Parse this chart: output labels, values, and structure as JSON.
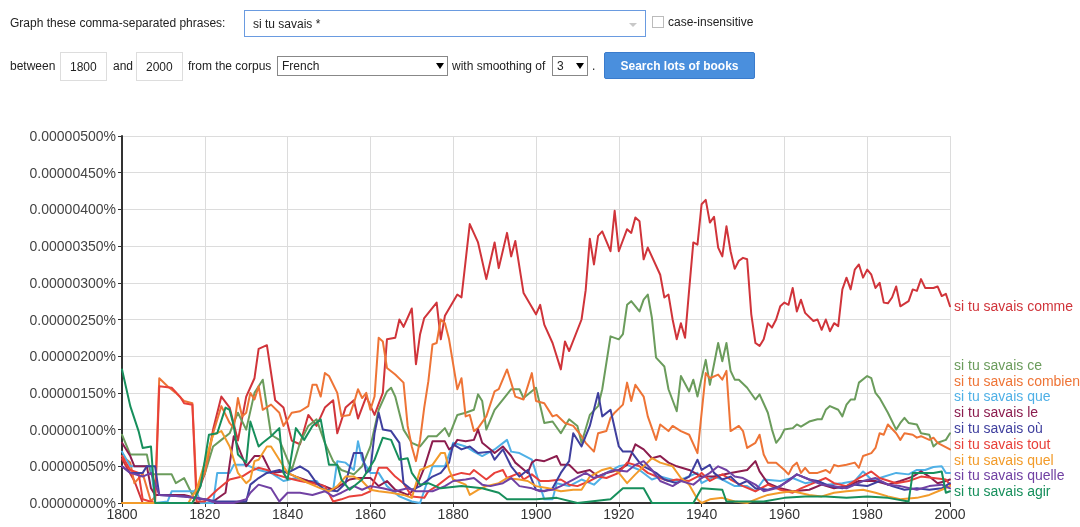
{
  "chart_data": {
    "type": "line",
    "xlim": [
      1800,
      2000
    ],
    "ylim": [
      0,
      5e-06
    ],
    "xticks": [
      1800,
      1820,
      1840,
      1860,
      1880,
      1900,
      1920,
      1940,
      1960,
      1980,
      2000
    ],
    "yticks": [
      {
        "value": 0,
        "label": "0.00000000%"
      },
      {
        "value": 5e-07,
        "label": "0.00000050%"
      },
      {
        "value": 1e-06,
        "label": "0.00000100%"
      },
      {
        "value": 1.5e-06,
        "label": "0.00000150%"
      },
      {
        "value": 2e-06,
        "label": "0.00000200%"
      },
      {
        "value": 2.5e-06,
        "label": "0.00000250%"
      },
      {
        "value": 3e-06,
        "label": "0.00000300%"
      },
      {
        "value": 3.5e-06,
        "label": "0.00000350%"
      },
      {
        "value": 4e-06,
        "label": "0.00000400%"
      },
      {
        "value": 4.5e-06,
        "label": "0.00000450%"
      },
      {
        "value": 5e-06,
        "label": "0.00000500%"
      }
    ],
    "grid": true,
    "legend": "right",
    "marker": "none",
    "line_style": "solid",
    "annotations": [
      "Graph these comma-separated phrases:",
      "si tu savais *",
      "case-insensitive",
      "between",
      "1800",
      "and",
      "2000",
      "from the corpus",
      "French",
      "with smoothing of",
      "3",
      ".",
      "Search lots of books"
    ],
    "series": [
      {
        "name": "si tu savais comme",
        "color": "#d0343a",
        "x": [
          1800,
          1803,
          1805,
          1817,
          1818,
          1820,
          1822,
          1824,
          1826,
          1828,
          1830,
          1832,
          1833,
          1835,
          1837,
          1839,
          1841,
          1843,
          1845,
          1847,
          1849,
          1851,
          1852,
          1854,
          1856,
          1857,
          1859,
          1861,
          1863,
          1864,
          1866,
          1867,
          1868,
          1870,
          1871,
          1872,
          1873,
          1876,
          1877,
          1878,
          1881,
          1882,
          1884,
          1886,
          1888,
          1890,
          1891,
          1893,
          1894,
          1895,
          1897,
          1900,
          1901,
          1902,
          1904,
          1906,
          1907,
          1908,
          1911,
          1912,
          1913,
          1914,
          1915,
          1916,
          1918,
          1919,
          1920,
          1922,
          1923,
          1924,
          1925,
          1926,
          1927,
          1930,
          1931,
          1932,
          1933,
          1934,
          1935,
          1936,
          1937,
          1938,
          1939,
          1940,
          1941,
          1942,
          1943,
          1944,
          1945,
          1946,
          1947,
          1948,
          1949,
          1950,
          1951,
          1952,
          1953,
          1954,
          1955,
          1956,
          1957,
          1958,
          1959,
          1960,
          1961,
          1962,
          1963,
          1964,
          1965,
          1967,
          1968,
          1969,
          1970,
          1971,
          1972,
          1973,
          1974,
          1975,
          1976,
          1977,
          1978,
          1979,
          1980,
          1981,
          1982,
          1983,
          1984,
          1985,
          1986,
          1987,
          1988,
          1990,
          1991,
          1992,
          1993,
          1994,
          1996,
          1997,
          1998,
          1999,
          2000
        ],
        "values": [
          6e-07,
          3e-07,
          0,
          0,
          1e-07,
          4e-07,
          1e-06,
          1.45e-06,
          1.3e-06,
          8.5e-07,
          1.45e-06,
          1.7e-06,
          2.1e-06,
          2.15e-06,
          1.4e-06,
          1.3e-06,
          8.5e-07,
          8e-07,
          1.2e-06,
          1.05e-06,
          1.3e-06,
          1.4e-06,
          9.5e-07,
          1.3e-06,
          1.4e-06,
          1.15e-06,
          1.45e-06,
          1.2e-06,
          1.5e-06,
          2.23e-06,
          2.25e-06,
          2.5e-06,
          2.4e-06,
          2.65e-06,
          1.89e-06,
          2.3e-06,
          2.52e-06,
          2.73e-06,
          2.23e-06,
          2.55e-06,
          2.84e-06,
          2.8e-06,
          3.8e-06,
          3.55e-06,
          3.05e-06,
          3.55e-06,
          3.2e-06,
          3.68e-06,
          3.36e-06,
          3.57e-06,
          2.86e-06,
          2.57e-06,
          2.7e-06,
          2.43e-06,
          2.18e-06,
          1.82e-06,
          2.2e-06,
          2.07e-06,
          2.5e-06,
          2.9e-06,
          3.6e-06,
          3.25e-06,
          3.64e-06,
          3.7e-06,
          3.43e-06,
          3.98e-06,
          3.43e-06,
          3.73e-06,
          3.68e-06,
          3.89e-06,
          3.84e-06,
          3.32e-06,
          3.48e-06,
          3.11e-06,
          2.8e-06,
          2.84e-06,
          2.5e-06,
          2.23e-06,
          2.45e-06,
          2.25e-06,
          2.91e-06,
          3.55e-06,
          3.52e-06,
          4.07e-06,
          4.13e-06,
          3.82e-06,
          3.9e-06,
          3.48e-06,
          3.36e-06,
          3.77e-06,
          3.43e-06,
          3.19e-06,
          3.3e-06,
          3.34e-06,
          3.32e-06,
          2.57e-06,
          2.18e-06,
          2.14e-06,
          2.23e-06,
          2.45e-06,
          2.39e-06,
          2.5e-06,
          2.68e-06,
          2.73e-06,
          2.7e-06,
          2.93e-06,
          2.61e-06,
          2.77e-06,
          2.59e-06,
          2.48e-06,
          2.5e-06,
          2.36e-06,
          2.5e-06,
          2.34e-06,
          2.45e-06,
          2.41e-06,
          2.91e-06,
          3.07e-06,
          2.91e-06,
          3.18e-06,
          3.25e-06,
          3.07e-06,
          3.18e-06,
          3.11e-06,
          2.93e-06,
          3e-06,
          2.73e-06,
          2.72e-06,
          2.8e-06,
          2.95e-06,
          2.68e-06,
          2.75e-06,
          2.91e-06,
          2.89e-06,
          3.05e-06,
          2.93e-06,
          2.93e-06,
          2.95e-06,
          2.82e-06,
          2.85e-06,
          2.68e-06
        ]
      },
      {
        "name": "si tu savais ce",
        "color": "#6b9c5c",
        "x": [
          1800,
          1802,
          1806,
          1807,
          1812,
          1813,
          1815,
          1817,
          1820,
          1822,
          1824,
          1826,
          1828,
          1830,
          1832,
          1834,
          1836,
          1838,
          1841,
          1843,
          1845,
          1847,
          1849,
          1851,
          1853,
          1856,
          1858,
          1860,
          1862,
          1864,
          1865,
          1866,
          1868,
          1870,
          1872,
          1874,
          1876,
          1878,
          1879,
          1881,
          1883,
          1885,
          1886,
          1887,
          1888,
          1890,
          1892,
          1894,
          1896,
          1897,
          1900,
          1902,
          1904,
          1906,
          1908,
          1910,
          1911,
          1913,
          1915,
          1916,
          1918,
          1920,
          1921,
          1922,
          1923,
          1925,
          1926,
          1927,
          1928,
          1929,
          1931,
          1932,
          1934,
          1935,
          1937,
          1938,
          1939,
          1941,
          1942,
          1943,
          1944,
          1945,
          1946,
          1947,
          1948,
          1949,
          1951,
          1953,
          1954,
          1956,
          1957,
          1958,
          1959,
          1960,
          1962,
          1963,
          1964,
          1966,
          1968,
          1969,
          1970,
          1971,
          1973,
          1974,
          1975,
          1976,
          1977,
          1978,
          1980,
          1981,
          1982,
          1983,
          1985,
          1987,
          1988,
          1989,
          1990,
          1992,
          1993,
          1995,
          1996,
          1997,
          1999,
          2000
        ],
        "values": [
          9.3e-07,
          6.6e-07,
          6.6e-07,
          3.9e-07,
          3.9e-07,
          2.7e-07,
          3.4e-07,
          1.1e-07,
          4e-07,
          7.7e-07,
          8.6e-07,
          9.5e-07,
          1.23e-06,
          1e-06,
          1.5e-06,
          1.68e-06,
          9.3e-07,
          8.6e-07,
          4.5e-07,
          8.2e-07,
          1.05e-06,
          1.14e-06,
          8.2e-07,
          5.7e-07,
          4.5e-07,
          3.9e-07,
          5e-07,
          7.7e-07,
          1.27e-06,
          1.52e-06,
          1.57e-06,
          1.45e-06,
          1e-06,
          8.2e-07,
          7.7e-07,
          9.1e-07,
          9.1e-07,
          1.02e-06,
          9.1e-07,
          1.2e-06,
          1.23e-06,
          1.27e-06,
          1.48e-06,
          1.39e-06,
          1e-06,
          1.27e-06,
          1.41e-06,
          1.55e-06,
          1.55e-06,
          1.43e-06,
          1.57e-06,
          1.09e-06,
          1.11e-06,
          9.5e-07,
          1.14e-06,
          1.05e-06,
          8.2e-07,
          1.2e-06,
          1.32e-06,
          1.55e-06,
          2.27e-06,
          2.23e-06,
          2.3e-06,
          2.7e-06,
          2.75e-06,
          2.61e-06,
          2.77e-06,
          2.84e-06,
          2.52e-06,
          1.98e-06,
          1.86e-06,
          1.55e-06,
          1.25e-06,
          1.73e-06,
          1.52e-06,
          1.68e-06,
          1.45e-06,
          1.95e-06,
          1.61e-06,
          1.89e-06,
          2.18e-06,
          1.93e-06,
          2.18e-06,
          1.8e-06,
          1.68e-06,
          1.68e-06,
          1.57e-06,
          1.41e-06,
          1.48e-06,
          1.23e-06,
          1e-06,
          8.2e-07,
          8.9e-07,
          1e-06,
          1.02e-06,
          1.07e-06,
          1.04e-06,
          1.11e-06,
          1.14e-06,
          1.14e-06,
          1.27e-06,
          1.32e-06,
          1.27e-06,
          1.18e-06,
          1.34e-06,
          1.41e-06,
          1.41e-06,
          1.64e-06,
          1.73e-06,
          1.7e-06,
          1.5e-06,
          1.43e-06,
          1.23e-06,
          1e-06,
          1.09e-06,
          1.16e-06,
          1.09e-06,
          1.07e-06,
          9.5e-07,
          9.3e-07,
          7.7e-07,
          8.2e-07,
          8.6e-07,
          9.5e-07
        ]
      },
      {
        "name": "si tu savais combien",
        "color": "#ee7436",
        "x": [
          1800,
          1802,
          1803,
          1805,
          1807,
          1808,
          1809,
          1811,
          1813,
          1815,
          1817,
          1818,
          1820,
          1822,
          1824,
          1826,
          1827,
          1828,
          1829,
          1830,
          1831,
          1832,
          1833,
          1834,
          1836,
          1838,
          1839,
          1841,
          1843,
          1845,
          1846,
          1847,
          1848,
          1849,
          1850,
          1852,
          1853,
          1855,
          1856,
          1857,
          1858,
          1859,
          1860,
          1861,
          1862,
          1863,
          1864,
          1866,
          1868,
          1869,
          1870,
          1871,
          1872,
          1873,
          1874,
          1875,
          1876,
          1877,
          1878,
          1879,
          1881,
          1882,
          1883,
          1884,
          1885,
          1886,
          1888,
          1890,
          1891,
          1893,
          1894,
          1895,
          1897,
          1899,
          1900,
          1902,
          1904,
          1905,
          1907,
          1909,
          1911,
          1912,
          1914,
          1915,
          1917,
          1918,
          1919,
          1921,
          1922,
          1923,
          1924,
          1926,
          1927,
          1929,
          1930,
          1932,
          1933,
          1935,
          1937,
          1939,
          1941,
          1942,
          1944,
          1945,
          1946,
          1947,
          1949,
          1950,
          1951,
          1953,
          1954,
          1955,
          1956,
          1958,
          1960,
          1961,
          1962,
          1963,
          1964,
          1965,
          1966,
          1968,
          1970,
          1971,
          1972,
          1973,
          1975,
          1977,
          1978,
          1979,
          1981,
          1982,
          1983,
          1984,
          1985,
          1987,
          1988,
          1989,
          1991,
          1992,
          1993,
          1995,
          1996,
          1997,
          2000
        ],
        "values": [
          6.4e-07,
          5.5e-07,
          2.7e-07,
          4e-07,
          2e-08,
          9e-08,
          1.7e-06,
          1.59e-06,
          1.5e-06,
          1.39e-06,
          1.36e-06,
          1.8e-07,
          4.1e-07,
          9.5e-07,
          1.32e-06,
          1.09e-06,
          1.02e-06,
          1.43e-06,
          1.18e-06,
          1.23e-06,
          1.5e-06,
          1.41e-06,
          1.59e-06,
          1.27e-06,
          1.34e-06,
          1.23e-06,
          1.05e-06,
          1.23e-06,
          1.25e-06,
          1.32e-06,
          1.61e-06,
          1.61e-06,
          1.45e-06,
          1.77e-06,
          1.73e-06,
          1.5e-06,
          1.18e-06,
          1.2e-06,
          1.36e-06,
          1.55e-06,
          1.43e-06,
          1.5e-06,
          1.27e-06,
          1.45e-06,
          2.25e-06,
          2.2e-06,
          1.84e-06,
          1.75e-06,
          1.64e-06,
          1.05e-06,
          7.7e-07,
          5.7e-07,
          8.6e-07,
          1.3e-06,
          1.66e-06,
          2.16e-06,
          2.18e-06,
          2.5e-06,
          2.45e-06,
          2.23e-06,
          1.55e-06,
          1.7e-06,
          1.18e-06,
          1.2e-06,
          9.8e-07,
          1.02e-06,
          1.18e-06,
          1.52e-06,
          1.55e-06,
          1.82e-06,
          1.64e-06,
          1.45e-06,
          1.41e-06,
          1.77e-06,
          1.39e-06,
          1.36e-06,
          1.18e-06,
          1.2e-06,
          1.09e-06,
          1.05e-06,
          9.1e-07,
          8.2e-07,
          7e-07,
          9.5e-07,
          9.8e-07,
          1.16e-06,
          1.23e-06,
          1.34e-06,
          1.64e-06,
          1.39e-06,
          1.61e-06,
          1.45e-06,
          1.18e-06,
          8.6e-07,
          1.07e-06,
          9.8e-07,
          1.05e-06,
          9.8e-07,
          9.3e-07,
          6.8e-07,
          1.77e-06,
          1.7e-06,
          1.75e-06,
          1.68e-06,
          1.8e-06,
          9.8e-07,
          1.05e-06,
          9.8e-07,
          7.5e-07,
          8.2e-07,
          9.3e-07,
          6.6e-07,
          5.5e-07,
          5.5e-07,
          4.5e-07,
          3.9e-07,
          5e-07,
          5.5e-07,
          4.1e-07,
          4.8e-07,
          4.1e-07,
          4.1e-07,
          4.5e-07,
          4.1e-07,
          5.2e-07,
          5e-07,
          5.2e-07,
          5.5e-07,
          4.8e-07,
          6.4e-07,
          6.8e-07,
          7.5e-07,
          9.5e-07,
          9.3e-07,
          1.07e-06,
          9.5e-07,
          8.6e-07,
          9.5e-07,
          9.3e-07,
          8.9e-07,
          9.1e-07,
          8.6e-07,
          8.9e-07,
          8.2e-07,
          7.3e-07
        ]
      },
      {
        "name": "si tu savais que",
        "color": "#4fb0e6",
        "x": [
          1800,
          1802,
          1807,
          1808,
          1811,
          1812,
          1818,
          1819,
          1822,
          1823,
          1826,
          1827,
          1830,
          1833,
          1836,
          1839,
          1842,
          1845,
          1847,
          1849,
          1851,
          1852,
          1854,
          1856,
          1857,
          1858,
          1860,
          1862,
          1864,
          1867,
          1870,
          1872,
          1875,
          1878,
          1880,
          1883,
          1885,
          1887,
          1890,
          1893,
          1894,
          1896,
          1899,
          1900,
          1902,
          1904,
          1905,
          1908,
          1911,
          1914,
          1917,
          1920,
          1922,
          1925,
          1928,
          1930,
          1934,
          1936,
          1939,
          1940,
          1943,
          1945,
          1948,
          1951,
          1953,
          1955,
          1959,
          1962,
          1965,
          1968,
          1970,
          1974,
          1977,
          1979,
          1981,
          1983,
          1987,
          1990,
          1992,
          1994,
          1996,
          1998,
          1999,
          2000
        ],
        "values": [
          7e-07,
          5e-07,
          5e-07,
          0,
          2e-08,
          1.6e-07,
          1.6e-07,
          0,
          0,
          4.1e-07,
          4.1e-07,
          5.2e-07,
          5.2e-07,
          4.5e-07,
          4.1e-07,
          3e-07,
          3.4e-07,
          3e-07,
          3e-07,
          1.6e-07,
          1.8e-07,
          5.7e-07,
          5.5e-07,
          4.5e-07,
          8.4e-07,
          5.9e-07,
          4.1e-07,
          4.1e-07,
          2.3e-07,
          9e-08,
          2e-08,
          0,
          5e-07,
          5e-07,
          8.2e-07,
          7.7e-07,
          7e-07,
          6.4e-07,
          7.3e-07,
          8.6e-07,
          7e-07,
          6.8e-07,
          5.9e-07,
          4.1e-07,
          5e-08,
          5e-08,
          2.7e-07,
          2.3e-07,
          3.2e-07,
          2.5e-07,
          4.1e-07,
          5e-07,
          5.2e-07,
          4.5e-07,
          3.2e-07,
          3.6e-07,
          3e-07,
          3.4e-07,
          4.1e-07,
          2.7e-07,
          3.6e-07,
          3.2e-07,
          2.3e-07,
          2.3e-07,
          1.6e-07,
          3.2e-07,
          3e-07,
          3.4e-07,
          2.7e-07,
          3e-07,
          2.5e-07,
          2.7e-07,
          3e-07,
          4.3e-07,
          3.2e-07,
          3.4e-07,
          4.1e-07,
          3.9e-07,
          4.5e-07,
          4.5e-07,
          4.9e-07,
          5e-07,
          4.1e-07,
          4.1e-07
        ]
      },
      {
        "name": "si tu savais le",
        "color": "#8c1d4e",
        "x": [
          1800,
          1802,
          1803,
          1806,
          1807,
          1808,
          1815,
          1818,
          1822,
          1825,
          1827,
          1830,
          1832,
          1834,
          1836,
          1839,
          1842,
          1845,
          1848,
          1851,
          1853,
          1855,
          1857,
          1860,
          1862,
          1864,
          1866,
          1869,
          1871,
          1873,
          1875,
          1878,
          1879,
          1880,
          1881,
          1883,
          1885,
          1886,
          1887,
          1889,
          1890,
          1892,
          1894,
          1895,
          1898,
          1899,
          1900,
          1902,
          1905,
          1906,
          1908,
          1910,
          1913,
          1915,
          1917,
          1920,
          1922,
          1924,
          1926,
          1928,
          1930,
          1932,
          1934,
          1937,
          1940,
          1943,
          1947,
          1951,
          1953,
          1954,
          1956,
          1959,
          1962,
          1966,
          1969,
          1972,
          1975,
          1978,
          1982,
          1985,
          1988,
          1991,
          1993,
          1995,
          1997,
          1999,
          2000
        ],
        "values": [
          8.2e-07,
          6.4e-07,
          5e-07,
          5e-07,
          2e-07,
          1.1e-07,
          1.1e-07,
          7e-08,
          2e-08,
          1.4e-07,
          9.1e-07,
          5e-07,
          6.4e-07,
          6.4e-07,
          4.1e-07,
          4.3e-07,
          3.6e-07,
          3e-07,
          2.5e-07,
          1.8e-07,
          2.5e-07,
          3.2e-07,
          3.4e-07,
          3.4e-07,
          2.3e-07,
          3e-07,
          1.8e-07,
          1.1e-07,
          2e-07,
          4.8e-07,
          8.4e-07,
          8.4e-07,
          7.3e-07,
          7.7e-07,
          8.6e-07,
          8.4e-07,
          8.6e-07,
          1e-06,
          8.2e-07,
          7.3e-07,
          6.8e-07,
          7.7e-07,
          6.4e-07,
          5.5e-07,
          4.1e-07,
          5.5e-07,
          5.9e-07,
          5.7e-07,
          6.4e-07,
          5.2e-07,
          5.2e-07,
          4.1e-07,
          4.5e-07,
          3.6e-07,
          4.1e-07,
          4.5e-07,
          5.2e-07,
          8e-07,
          7.3e-07,
          6.1e-07,
          6.4e-07,
          5.5e-07,
          5e-07,
          4.5e-07,
          3.6e-07,
          3.6e-07,
          4.1e-07,
          4.5e-07,
          5.7e-07,
          4.3e-07,
          2.7e-07,
          2e-07,
          1.6e-07,
          1.8e-07,
          2.5e-07,
          2e-07,
          2.3e-07,
          3e-07,
          3e-07,
          2.5e-07,
          3e-07,
          3.6e-07,
          4.3e-07,
          3.6e-07,
          2.7e-07,
          3e-07,
          3.2e-07
        ]
      },
      {
        "name": "si tu savais tout",
        "color": "#e8403a",
        "x": [
          1800,
          1802,
          1804,
          1805,
          1808,
          1809,
          1812,
          1814,
          1815,
          1817,
          1818,
          1820,
          1823,
          1826,
          1829,
          1831,
          1833,
          1835,
          1837,
          1840,
          1843,
          1846,
          1849,
          1851,
          1853,
          1855,
          1858,
          1860,
          1862,
          1864,
          1866,
          1868,
          1870,
          1873,
          1874,
          1876,
          1879,
          1882,
          1884,
          1885,
          1888,
          1890,
          1892,
          1893,
          1896,
          1897,
          1899,
          1901,
          1903,
          1906,
          1908,
          1910,
          1913,
          1915,
          1917,
          1920,
          1922,
          1925,
          1927,
          1930,
          1932,
          1934,
          1937,
          1939,
          1940,
          1942,
          1945,
          1947,
          1950,
          1953,
          1956,
          1959,
          1962,
          1964,
          1967,
          1970,
          1972,
          1975,
          1978,
          1981,
          1983,
          1987,
          1990,
          1993,
          1996,
          1999,
          2000
        ],
        "values": [
          6.4e-07,
          4.5e-07,
          4.1e-07,
          5e-08,
          0,
          1.59e-06,
          1.57e-06,
          1.45e-06,
          1.36e-06,
          1.34e-06,
          2e-08,
          2e-08,
          1.8e-07,
          3.2e-07,
          3.6e-07,
          4.3e-07,
          4.8e-07,
          4.5e-07,
          3.9e-07,
          3.4e-07,
          3e-07,
          2.7e-07,
          2.3e-07,
          2e-08,
          5e-08,
          9e-08,
          1.1e-07,
          1.6e-07,
          4.8e-07,
          4.8e-07,
          3.6e-07,
          2.7e-07,
          9e-08,
          7e-08,
          1.6e-07,
          2.3e-07,
          3.6e-07,
          4.1e-07,
          3.9e-07,
          4.5e-07,
          3.2e-07,
          4.1e-07,
          4.5e-07,
          3.4e-07,
          4.1e-07,
          3.2e-07,
          3.9e-07,
          3e-07,
          3e-07,
          3.2e-07,
          2.5e-07,
          2.3e-07,
          3e-07,
          3.6e-07,
          3.4e-07,
          4.1e-07,
          5.5e-07,
          5e-07,
          4.1e-07,
          3.4e-07,
          3e-07,
          3.2e-07,
          3e-07,
          3.6e-07,
          4.1e-07,
          3e-07,
          3.9e-07,
          3.2e-07,
          2.3e-07,
          1.6e-07,
          2.5e-07,
          1.8e-07,
          1.4e-07,
          2e-07,
          2.7e-07,
          3.4e-07,
          2.7e-07,
          2.3e-07,
          3.4e-07,
          4.3e-07,
          3.4e-07,
          2.7e-07,
          3e-07,
          3.6e-07,
          3.4e-07,
          3.2e-07,
          2.5e-07
        ]
      },
      {
        "name": "si tu savais où",
        "color": "#3f3f9e",
        "x": [
          1800,
          1802,
          1805,
          1806,
          1808,
          1809,
          1815,
          1820,
          1823,
          1830,
          1831,
          1833,
          1835,
          1838,
          1840,
          1843,
          1845,
          1847,
          1849,
          1852,
          1854,
          1855,
          1856,
          1858,
          1859,
          1860,
          1861,
          1862,
          1863,
          1865,
          1867,
          1868,
          1870,
          1872,
          1875,
          1877,
          1879,
          1880,
          1882,
          1884,
          1886,
          1889,
          1890,
          1892,
          1894,
          1896,
          1898,
          1900,
          1902,
          1904,
          1906,
          1908,
          1909,
          1911,
          1913,
          1915,
          1916,
          1918,
          1920,
          1921,
          1923,
          1925,
          1926,
          1929,
          1931,
          1934,
          1937,
          1939,
          1940,
          1942,
          1943,
          1945,
          1947,
          1949,
          1951,
          1953,
          1956,
          1959,
          1963,
          1966,
          1968,
          1971,
          1974,
          1977,
          1980,
          1983,
          1986,
          1989,
          1992,
          1995,
          1998,
          2000
        ],
        "values": [
          5e-07,
          4.1e-07,
          4.1e-07,
          5e-07,
          5e-07,
          1.1e-07,
          9e-08,
          5e-08,
          2e-08,
          2e-08,
          2.5e-07,
          3.4e-07,
          4.1e-07,
          4.5e-07,
          4.1e-07,
          5e-07,
          4.3e-07,
          2.7e-07,
          1.8e-07,
          1.6e-07,
          2.7e-07,
          4.8e-07,
          6.8e-07,
          6.8e-07,
          4.1e-07,
          4.5e-07,
          9.5e-07,
          1.23e-06,
          1e-06,
          9.8e-07,
          8.2e-07,
          2.7e-07,
          1.8e-07,
          2.3e-07,
          3.6e-07,
          4.1e-07,
          5.5e-07,
          8e-07,
          7.3e-07,
          7.7e-07,
          6.8e-07,
          7e-07,
          5.9e-07,
          7.3e-07,
          5e-07,
          3.6e-07,
          4.5e-07,
          1.8e-07,
          1.6e-07,
          2e-07,
          4.1e-07,
          5.7e-07,
          9.5e-07,
          7.7e-07,
          1.05e-06,
          1.5e-06,
          1.18e-06,
          1.27e-06,
          7.7e-07,
          7e-07,
          7e-07,
          5.5e-07,
          5e-07,
          4.1e-07,
          3.2e-07,
          2.7e-07,
          3.6e-07,
          5.9e-07,
          4.5e-07,
          5.2e-07,
          4.1e-07,
          3.2e-07,
          3.6e-07,
          2.5e-07,
          3e-07,
          2e-07,
          1.8e-07,
          2.3e-07,
          3.9e-07,
          3.2e-07,
          3e-07,
          2.3e-07,
          2e-07,
          2.5e-07,
          2.3e-07,
          3e-07,
          2.3e-07,
          1.8e-07,
          2e-07,
          1.8e-07,
          2e-07,
          2.7e-07
        ]
      },
      {
        "name": "si tu savais quel",
        "color": "#f29b2a",
        "x": [
          1800,
          1816,
          1818,
          1820,
          1822,
          1824,
          1826,
          1828,
          1830,
          1831,
          1832,
          1833,
          1835,
          1836,
          1838,
          1840,
          1842,
          1845,
          1848,
          1850,
          1852,
          1854,
          1856,
          1858,
          1860,
          1862,
          1865,
          1868,
          1870,
          1872,
          1875,
          1877,
          1878,
          1879,
          1880,
          1883,
          1884,
          1886,
          1888,
          1891,
          1893,
          1896,
          1898,
          1900,
          1903,
          1906,
          1909,
          1911,
          1913,
          1916,
          1918,
          1920,
          1922,
          1924,
          1926,
          1928,
          1930,
          1933,
          1935,
          1937,
          1939,
          1940,
          1942,
          1945,
          1948,
          1951,
          1954,
          1956,
          1959,
          1962,
          1966,
          1969,
          1972,
          1975,
          1979,
          1982,
          1985,
          1988,
          1992,
          1995,
          1998,
          2000
        ],
        "values": [
          0,
          0,
          1.8e-07,
          5.5e-07,
          9.3e-07,
          9.8e-07,
          7.7e-07,
          4.1e-07,
          2.7e-07,
          3.2e-07,
          5.7e-07,
          5.9e-07,
          7.7e-07,
          7.7e-07,
          5.9e-07,
          4.1e-07,
          3.6e-07,
          2.7e-07,
          2e-07,
          1.6e-07,
          2.3e-07,
          3.6e-07,
          3.6e-07,
          3e-07,
          1.8e-07,
          1.6e-07,
          1.4e-07,
          1.1e-07,
          7e-08,
          4.5e-07,
          5.2e-07,
          6.8e-07,
          6.8e-07,
          4.5e-07,
          3.2e-07,
          2.5e-07,
          1.1e-07,
          1.8e-07,
          2.3e-07,
          2.7e-07,
          3.4e-07,
          3.2e-07,
          3e-07,
          2.3e-07,
          2e-07,
          1.6e-07,
          1.8e-07,
          1.8e-07,
          3.6e-07,
          4.5e-07,
          4.8e-07,
          4.1e-07,
          2.7e-07,
          3.9e-07,
          5e-07,
          6.1e-07,
          5.5e-07,
          5e-07,
          3.4e-07,
          2.5e-07,
          5e-08,
          0,
          5e-08,
          7e-08,
          2e-08,
          0,
          7e-08,
          1.1e-07,
          1.4e-07,
          1.6e-07,
          1.1e-07,
          9e-08,
          1.4e-07,
          1.6e-07,
          1.8e-07,
          1.4e-07,
          9e-08,
          5e-08,
          7e-08,
          1.1e-07,
          1.8e-07,
          2.3e-07
        ]
      },
      {
        "name": "si tu savais quelle",
        "color": "#7141a3",
        "x": [
          1800,
          1802,
          1805,
          1807,
          1809,
          1815,
          1820,
          1823,
          1827,
          1830,
          1831,
          1833,
          1836,
          1838,
          1840,
          1843,
          1846,
          1849,
          1851,
          1853,
          1856,
          1858,
          1860,
          1863,
          1866,
          1869,
          1871,
          1875,
          1878,
          1880,
          1883,
          1885,
          1887,
          1889,
          1892,
          1894,
          1896,
          1899,
          1901,
          1904,
          1906,
          1909,
          1912,
          1914,
          1917,
          1919,
          1922,
          1924,
          1926,
          1928,
          1930,
          1933,
          1935,
          1938,
          1940,
          1942,
          1944,
          1946,
          1948,
          1950,
          1953,
          1955,
          1958,
          1961,
          1963,
          1966,
          1969,
          1972,
          1975,
          1979,
          1982,
          1985,
          1988,
          1992,
          1995,
          1998,
          2000
        ],
        "values": [
          5e-07,
          4.1e-07,
          3.6e-07,
          4.1e-07,
          1.1e-07,
          9e-08,
          5e-08,
          0,
          0,
          5e-08,
          1.4e-07,
          2.5e-07,
          2e-07,
          2e-08,
          1.4e-07,
          1.4e-07,
          1.1e-07,
          1.6e-07,
          9e-08,
          1.4e-07,
          2.3e-07,
          1.8e-07,
          2.3e-07,
          2e-07,
          1.6e-07,
          2e-07,
          1.6e-07,
          1.6e-07,
          2.3e-07,
          3e-07,
          3.2e-07,
          3.4e-07,
          2.5e-07,
          2.3e-07,
          2.7e-07,
          3.4e-07,
          2.3e-07,
          2e-07,
          1.6e-07,
          1.8e-07,
          2.3e-07,
          3.2e-07,
          4.1e-07,
          3.4e-07,
          4.1e-07,
          4.5e-07,
          4.3e-07,
          5.2e-07,
          5.7e-07,
          4.5e-07,
          3e-07,
          2.3e-07,
          3e-07,
          2.5e-07,
          3.4e-07,
          4.1e-07,
          5e-07,
          4.5e-07,
          3.6e-07,
          3.4e-07,
          2.5e-07,
          1.6e-07,
          2e-07,
          3e-07,
          3.9e-07,
          3.2e-07,
          2.5e-07,
          2.3e-07,
          2e-07,
          3e-07,
          3.4e-07,
          2.5e-07,
          2.3e-07,
          1.8e-07,
          2.3e-07,
          2.5e-07,
          2e-07
        ]
      },
      {
        "name": "si tu savais agir",
        "color": "#178f5c",
        "x": [
          1800,
          1802,
          1804,
          1805,
          1807,
          1808,
          1817,
          1819,
          1821,
          1823,
          1825,
          1826,
          1827,
          1828,
          1830,
          1831,
          1833,
          1834,
          1836,
          1838,
          1839,
          1840,
          1842,
          1844,
          1846,
          1848,
          1850,
          1852,
          1853,
          1855,
          1858,
          1861,
          1863,
          1865,
          1867,
          1869,
          1870,
          1872,
          1874,
          1877,
          1882,
          1887,
          1891,
          1893,
          1896,
          1900,
          1905,
          1910,
          1918,
          1921,
          1926,
          1928,
          1938,
          1940,
          1945,
          1946,
          1955,
          1960,
          1965,
          1970,
          1975,
          1980,
          1985,
          1990,
          1991,
          1996,
          1998,
          1999,
          2000
        ],
        "values": [
          1.82e-06,
          1.32e-06,
          9.8e-07,
          7.5e-07,
          7.7e-07,
          0,
          0,
          2.3e-07,
          9.3e-07,
          9.5e-07,
          1.3e-06,
          1.27e-06,
          1.05e-06,
          6.6e-07,
          5.5e-07,
          1.11e-06,
          7.7e-07,
          8.2e-07,
          9.1e-07,
          1.02e-06,
          4.1e-07,
          3.2e-07,
          1.02e-06,
          8.6e-07,
          1.05e-06,
          1.14e-06,
          5.2e-07,
          5.2e-07,
          3.2e-07,
          1.8e-07,
          3.2e-07,
          5.9e-07,
          8.9e-07,
          8.6e-07,
          5.9e-07,
          6.1e-07,
          4.1e-07,
          2.5e-07,
          2.7e-07,
          2e-07,
          2.3e-07,
          2e-07,
          1.4e-07,
          5e-08,
          5e-08,
          5e-08,
          7e-08,
          0,
          5e-08,
          2e-07,
          2e-07,
          0,
          0,
          2e-07,
          1.8e-07,
          2e-08,
          2e-08,
          7e-08,
          9e-08,
          9e-08,
          7e-08,
          9e-08,
          7e-08,
          2e-08,
          4.1e-07,
          4.1e-07,
          4.3e-07,
          1.4e-07,
          1.6e-07
        ]
      }
    ]
  }
}
